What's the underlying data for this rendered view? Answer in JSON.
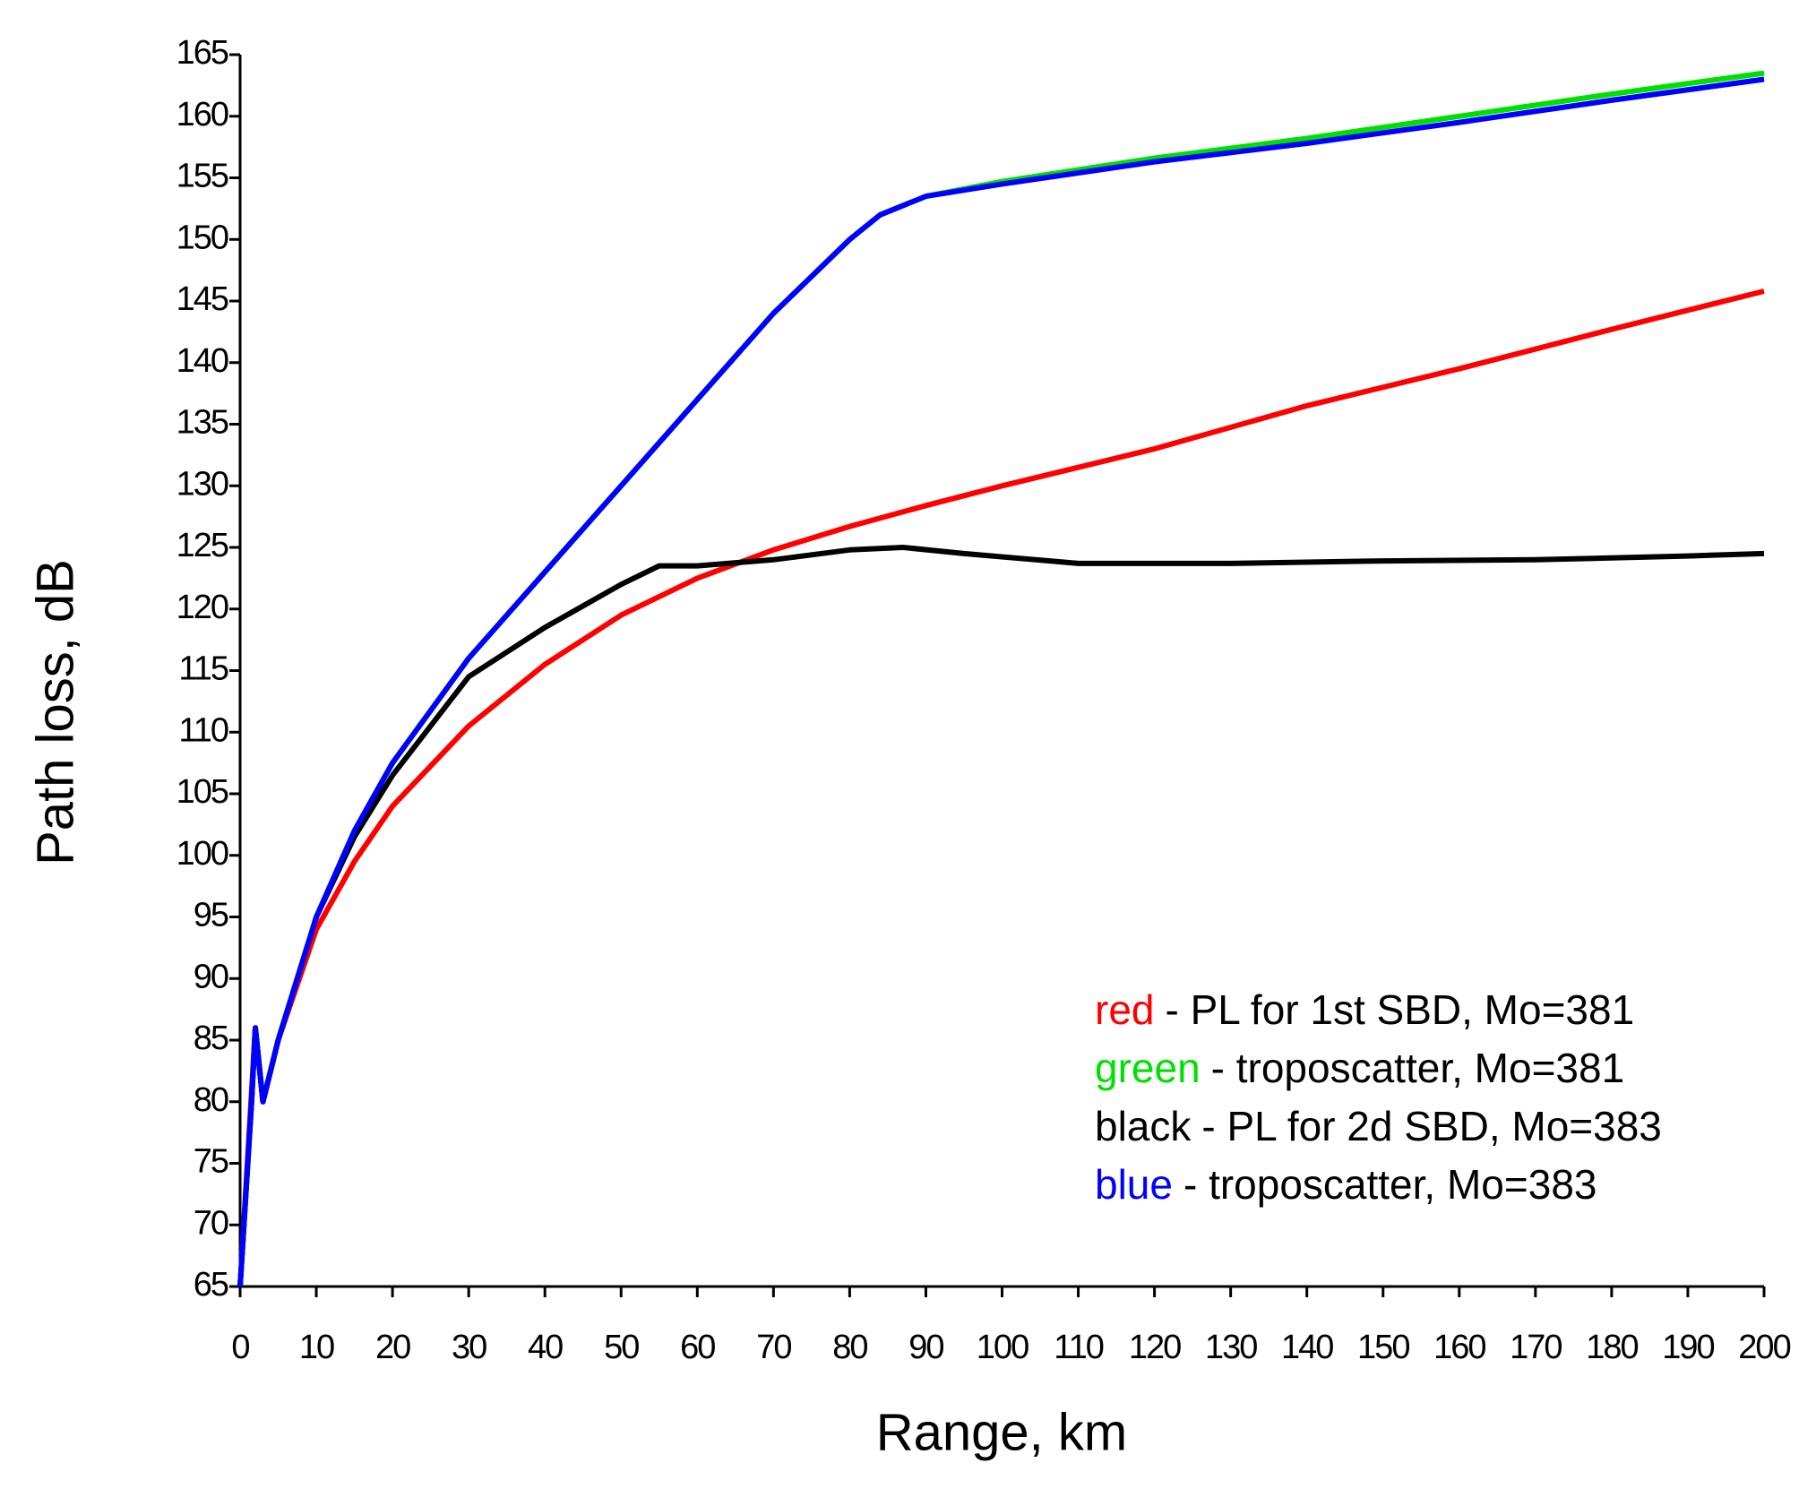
{
  "chart_data": {
    "type": "line",
    "xlabel": "Range, km",
    "ylabel": "Path loss, dB",
    "xlim": [
      0,
      200
    ],
    "ylim": [
      65,
      165
    ],
    "xticks": [
      0,
      10,
      20,
      30,
      40,
      50,
      60,
      70,
      80,
      90,
      100,
      110,
      120,
      130,
      140,
      150,
      160,
      170,
      180,
      190,
      200
    ],
    "yticks": [
      65,
      70,
      75,
      80,
      85,
      90,
      95,
      100,
      105,
      110,
      115,
      120,
      125,
      130,
      135,
      140,
      145,
      150,
      155,
      160,
      165
    ],
    "series": [
      {
        "label": "red",
        "name": "- PL for 1st SBD, Mo=381",
        "color": "#ff0000",
        "x": [
          0,
          2,
          3,
          5,
          10,
          15,
          20,
          30,
          40,
          50,
          60,
          70,
          80,
          90,
          100,
          120,
          140,
          160,
          180,
          200
        ],
        "values": [
          65,
          86,
          80,
          85,
          94,
          99.5,
          104,
          110.5,
          115.5,
          119.5,
          122.5,
          124.8,
          126.7,
          128.4,
          130,
          133,
          136.5,
          139.5,
          142.7,
          145.8
        ]
      },
      {
        "label": "green",
        "name": "- troposcatter, Mo=381",
        "color": "#00e000",
        "x": [
          0,
          1.5,
          2,
          3,
          5,
          10,
          15,
          20,
          30,
          40,
          50,
          60,
          70,
          80,
          84,
          90,
          100,
          120,
          140,
          160,
          180,
          200
        ],
        "values": [
          65,
          80,
          86,
          80,
          85,
          95,
          102,
          107.5,
          116,
          123,
          130,
          137,
          144,
          150,
          152,
          153.5,
          154.7,
          156.6,
          158.2,
          160,
          161.8,
          163.5
        ]
      },
      {
        "label": "black",
        "name": "- PL for 2d SBD, Mo=383",
        "color": "#000000",
        "x": [
          0,
          1.5,
          2,
          3,
          5,
          10,
          15,
          20,
          30,
          40,
          50,
          55,
          60,
          70,
          80,
          87,
          95,
          110,
          130,
          150,
          170,
          190,
          200
        ],
        "values": [
          65,
          80,
          86,
          80,
          85,
          95,
          101.5,
          106.5,
          114.5,
          118.5,
          122,
          123.5,
          123.5,
          124,
          124.8,
          125,
          124.5,
          123.7,
          123.7,
          123.9,
          124,
          124.3,
          124.5
        ]
      },
      {
        "label": "blue",
        "name": "- troposcatter, Mo=383",
        "color": "#0000ff",
        "x": [
          0,
          1.5,
          2,
          3,
          5,
          10,
          15,
          20,
          30,
          40,
          50,
          60,
          70,
          80,
          84,
          90,
          100,
          120,
          140,
          160,
          180,
          200
        ],
        "values": [
          65,
          80,
          86,
          80,
          85,
          95,
          102,
          107.5,
          116,
          123,
          130,
          137,
          144,
          150,
          152,
          153.5,
          154.5,
          156.3,
          157.8,
          159.5,
          161.3,
          163
        ]
      }
    ]
  }
}
